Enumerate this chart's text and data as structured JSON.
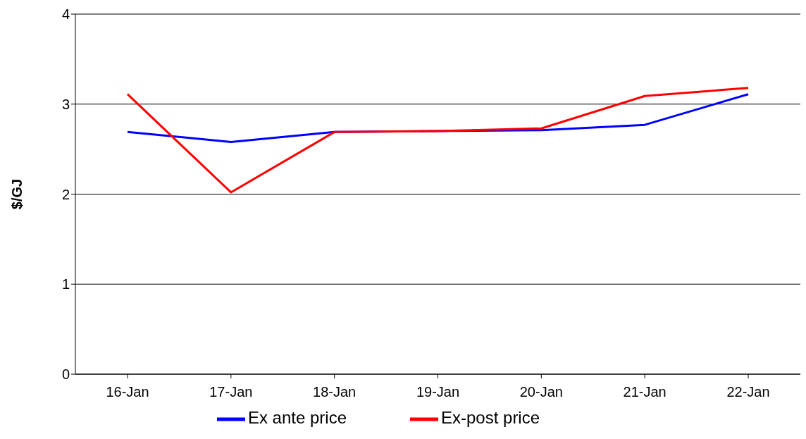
{
  "chart_data": {
    "type": "line",
    "ylabel": "$/GJ",
    "categories": [
      "16-Jan",
      "17-Jan",
      "18-Jan",
      "19-Jan",
      "20-Jan",
      "21-Jan",
      "22-Jan"
    ],
    "series": [
      {
        "name": "Ex ante price",
        "color": "#0000ff",
        "values": [
          2.69,
          2.58,
          2.69,
          2.7,
          2.71,
          2.77,
          3.11
        ]
      },
      {
        "name": "Ex-post price",
        "color": "#ff0000",
        "values": [
          3.11,
          2.02,
          2.69,
          2.7,
          2.73,
          3.09,
          3.18
        ]
      }
    ],
    "ylim": [
      0,
      4
    ],
    "yticks": [
      0,
      1,
      2,
      3,
      4
    ],
    "grid": "y",
    "legend": "bottom",
    "marker": "none",
    "line_style": "solid"
  }
}
